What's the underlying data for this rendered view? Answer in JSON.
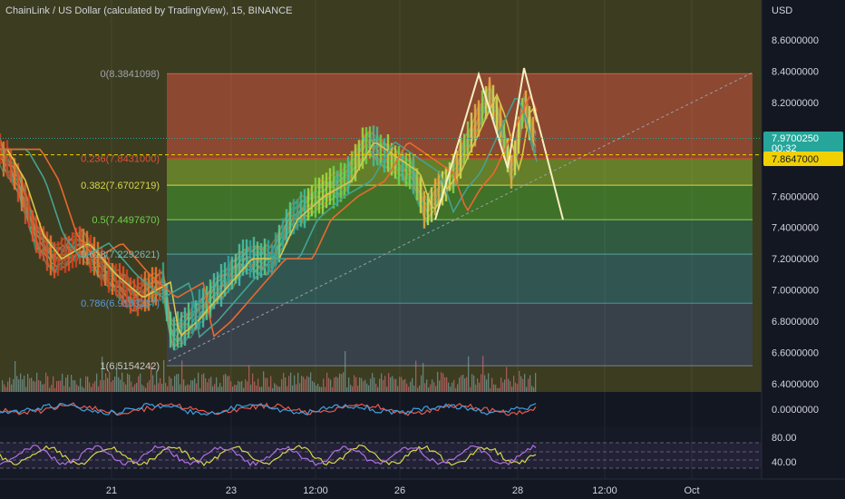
{
  "header": {
    "title": "ChainLink / US Dollar (calculated by TradingView), 15, BINANCE"
  },
  "price_axis": {
    "currency": "USD",
    "ticks": [
      "8.6000000",
      "8.4000000",
      "8.2000000",
      "7.6000000",
      "7.4000000",
      "7.2000000",
      "7.0000000",
      "6.8000000",
      "6.6000000",
      "6.4000000"
    ],
    "last_price": "7.9700250",
    "countdown": "00:32",
    "marked_price": "7.8647000"
  },
  "oscillator_axis": {
    "ticks": [
      "0.0000000"
    ]
  },
  "rsi_axis": {
    "ticks": [
      "80.00",
      "40.00"
    ]
  },
  "time_axis": {
    "ticks": [
      "21",
      "23",
      "12:00",
      "26",
      "28",
      "12:00",
      "Oct"
    ]
  },
  "fib_labels": [
    "0(8.3841098)",
    "0.236(7.8431000)",
    "0.382(7.6702719)",
    "0.5(7.4497670)",
    "0.618(7.2292621)",
    "0.786(6.9153237)",
    "1(6.5154242)"
  ],
  "colors": {
    "background": "#131722",
    "fib_0": "#9a4a35",
    "fib_236": "#6b8a2c",
    "fib_382": "#3f7a2c",
    "fib_5": "#2e6046",
    "fib_618": "#2f5a5a",
    "fib_786": "#374252",
    "pre_region": "#3a3a22",
    "pattern": "#f6f0c0",
    "ema_orange": "#e8692f",
    "ema_teal": "#46a191",
    "ema_yellow": "#d8c64a",
    "marked_badge": "#f0d000",
    "last_badge": "#26a69a"
  },
  "chart_data": {
    "type": "line",
    "title": "ChainLink / US Dollar (calculated by TradingView), 15, BINANCE",
    "ylabel": "USD",
    "ylim": [
      6.36,
      8.78
    ],
    "x": [
      "20",
      "21",
      "22",
      "23",
      "24",
      "25",
      "26",
      "27",
      "28",
      "28.5"
    ],
    "series": [
      {
        "values": [
          7.9,
          7.1,
          6.95,
          7.0,
          7.3,
          7.75,
          7.55,
          8.05,
          7.97,
          7.92
        ]
      }
    ],
    "fib_levels": [
      {
        "ratio": "0",
        "price": 8.3841098
      },
      {
        "ratio": "0.236",
        "price": 7.8431
      },
      {
        "ratio": "0.382",
        "price": 7.6702719
      },
      {
        "ratio": "0.5",
        "price": 7.449767
      },
      {
        "ratio": "0.618",
        "price": 7.2292621
      },
      {
        "ratio": "0.786",
        "price": 6.9153237
      },
      {
        "ratio": "1",
        "price": 6.5154242
      }
    ],
    "pattern_points": [
      7.45,
      8.38,
      7.78,
      8.42,
      7.45
    ],
    "last_price": 7.970025,
    "marked_price": 7.8647,
    "grid": true
  }
}
